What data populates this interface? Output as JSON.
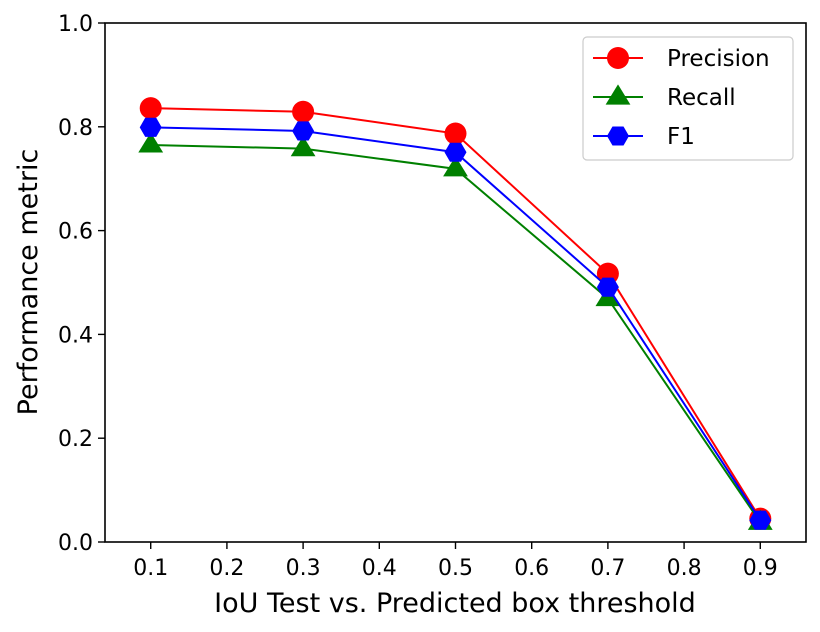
{
  "chart_data": {
    "type": "line",
    "title": "",
    "xlabel": "IoU Test vs. Predicted box threshold",
    "ylabel": "Performance metric",
    "x": [
      0.1,
      0.3,
      0.5,
      0.7,
      0.9
    ],
    "xlim": [
      0.04,
      0.96
    ],
    "ylim": [
      0.0,
      1.0
    ],
    "xticks": [
      0.1,
      0.2,
      0.3,
      0.4,
      0.5,
      0.6,
      0.7,
      0.8,
      0.9
    ],
    "xtick_labels": [
      "0.1",
      "0.2",
      "0.3",
      "0.4",
      "0.5",
      "0.6",
      "0.7",
      "0.8",
      "0.9"
    ],
    "yticks": [
      0.0,
      0.2,
      0.4,
      0.6,
      0.8,
      1.0
    ],
    "ytick_labels": [
      "0.0",
      "0.2",
      "0.4",
      "0.6",
      "0.8",
      "1.0"
    ],
    "grid": false,
    "legend_position": "top-right",
    "series": [
      {
        "name": "Precision",
        "color": "#ff0000",
        "marker": "circle",
        "values": [
          0.836,
          0.829,
          0.787,
          0.517,
          0.045
        ]
      },
      {
        "name": "Recall",
        "color": "#008000",
        "marker": "triangle",
        "values": [
          0.765,
          0.758,
          0.719,
          0.469,
          0.038
        ]
      },
      {
        "name": "F1",
        "color": "#0000ff",
        "marker": "hexagon",
        "values": [
          0.799,
          0.792,
          0.751,
          0.491,
          0.042
        ]
      }
    ]
  }
}
